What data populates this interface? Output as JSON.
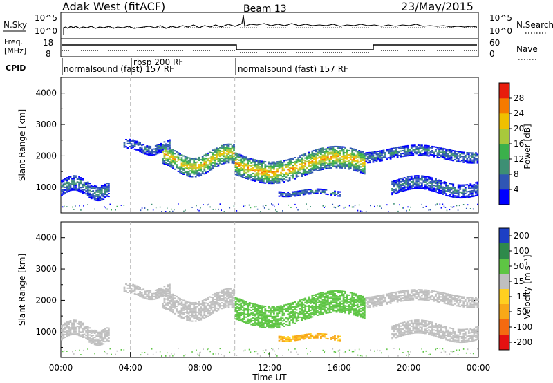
{
  "header": {
    "site": "Adak West (fitACF)",
    "beam": "Beam 13",
    "date": "23/May/2015"
  },
  "summary_panels": {
    "nsky_label": "N.Sky",
    "nsearch_label": "N.Search",
    "count_ticks": [
      "10^5",
      "10^0"
    ],
    "freq_label_1": "Freq.",
    "freq_label_2": "[MHz]",
    "freq_ticks": [
      "18",
      "8"
    ],
    "nave_label": "Nave",
    "nave_ticks": [
      "60",
      "0"
    ],
    "cpid_label": "CPID"
  },
  "cpid_segments": [
    {
      "label": "normalsound (fast) 157 RF",
      "start_hour": 0,
      "end_hour": 4
    },
    {
      "label": "rbsp 200 RF",
      "start_hour": 4,
      "end_hour": 10
    },
    {
      "label": "normalsound (fast) 157 RF",
      "start_hour": 10,
      "end_hour": 24
    }
  ],
  "colors": {
    "power": [
      "#0000ff",
      "#2f56b4",
      "#3d8f74",
      "#3bb04b",
      "#a8c83c",
      "#f0c000",
      "#f57a00",
      "#e81c0c"
    ],
    "velocity_pos": [
      "#1d3fc4",
      "#2f8a4b",
      "#5ec544",
      "#bfbfbf"
    ],
    "velocity_neg": [
      "#ffd020",
      "#f8a818",
      "#f46a10",
      "#e41010"
    ]
  },
  "chart_data": {
    "type": "heatmap",
    "x_axis": {
      "label": "Time UT",
      "range_hours": [
        0,
        24
      ],
      "ticks": [
        "00:00",
        "04:00",
        "08:00",
        "12:00",
        "16:00",
        "20:00",
        "00:00"
      ]
    },
    "panels": [
      {
        "name": "power",
        "ylabel": "Slant Range [km]",
        "ylim": [
          180,
          4500
        ],
        "yticks": [
          1000,
          2000,
          3000,
          4000
        ],
        "colorbar": {
          "label": "Power [dB]",
          "min": 0,
          "max": 32,
          "ticks": [
            "4",
            "8",
            "12",
            "16",
            "20",
            "24",
            "28"
          ]
        }
      },
      {
        "name": "velocity",
        "ylabel": "Slant Range [km]",
        "ylim": [
          180,
          4500
        ],
        "yticks": [
          1000,
          2000,
          3000,
          4000
        ],
        "colorbar": {
          "label": "Velocity [m s⁻¹]",
          "ticks": [
            "200",
            "100",
            "50",
            "15",
            "-15",
            "-50",
            "-100",
            "-200"
          ]
        }
      }
    ],
    "echo_bands": [
      {
        "start_hour": 0.0,
        "end_hour": 2.8,
        "range_km": [
          620,
          1300
        ],
        "power_db": 10,
        "velocity": 0
      },
      {
        "start_hour": 3.6,
        "end_hour": 6.2,
        "range_km": [
          2050,
          2500
        ],
        "power_db": 8,
        "velocity": 0
      },
      {
        "start_hour": 5.8,
        "end_hour": 9.9,
        "range_km": [
          1400,
          2300
        ],
        "power_db": 22,
        "velocity": 0
      },
      {
        "start_hour": 10.0,
        "end_hour": 17.5,
        "range_km": [
          1200,
          2200
        ],
        "power_db": 24,
        "velocity": 30
      },
      {
        "start_hour": 12.5,
        "end_hour": 16.0,
        "range_km": [
          700,
          900
        ],
        "power_db": 10,
        "velocity": -60
      },
      {
        "start_hour": 17.5,
        "end_hour": 24.0,
        "range_km": [
          1800,
          2300
        ],
        "power_db": 10,
        "velocity": 0
      },
      {
        "start_hour": 19.0,
        "end_hour": 24.0,
        "range_km": [
          700,
          1300
        ],
        "power_db": 9,
        "velocity": 0
      }
    ]
  }
}
